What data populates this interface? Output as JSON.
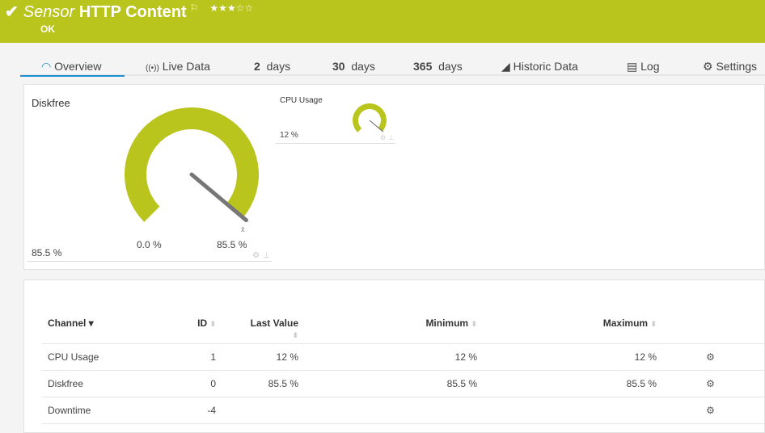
{
  "header": {
    "prefix": "Sensor",
    "name": "HTTP Content",
    "status": "OK",
    "rating": 3,
    "rating_max": 5,
    "brand_color": "#b9c41c"
  },
  "tabs": [
    {
      "label": "Overview",
      "icon": "gauge-icon",
      "active": true
    },
    {
      "label": "Live Data",
      "icon": "broadcast-icon"
    },
    {
      "num": "2",
      "label": "days"
    },
    {
      "num": "30",
      "label": "days"
    },
    {
      "num": "365",
      "label": "days"
    },
    {
      "label": "Historic Data",
      "icon": "area-chart-icon"
    },
    {
      "label": "Log",
      "icon": "list-icon"
    },
    {
      "label": "Settings",
      "icon": "gear-icon"
    }
  ],
  "gauges": [
    {
      "title": "Diskfree",
      "value": 85.5,
      "value_label": "85.5 %",
      "min_label": "0.0 %",
      "max_label": "85.5 %",
      "max": 85.5,
      "mean_symbol": "x̄"
    },
    {
      "title": "CPU Usage",
      "value": 12,
      "value_label": "12 %",
      "max": 12
    }
  ],
  "table": {
    "headers": [
      "Channel",
      "ID",
      "Last Value",
      "Minimum",
      "Maximum"
    ],
    "rows": [
      {
        "channel": "CPU Usage",
        "id": "1",
        "last": "12 %",
        "min": "12 %",
        "max": "12 %"
      },
      {
        "channel": "Diskfree",
        "id": "0",
        "last": "85.5 %",
        "min": "85.5 %",
        "max": "85.5 %"
      },
      {
        "channel": "Downtime",
        "id": "-4",
        "last": "",
        "min": "",
        "max": ""
      }
    ]
  }
}
